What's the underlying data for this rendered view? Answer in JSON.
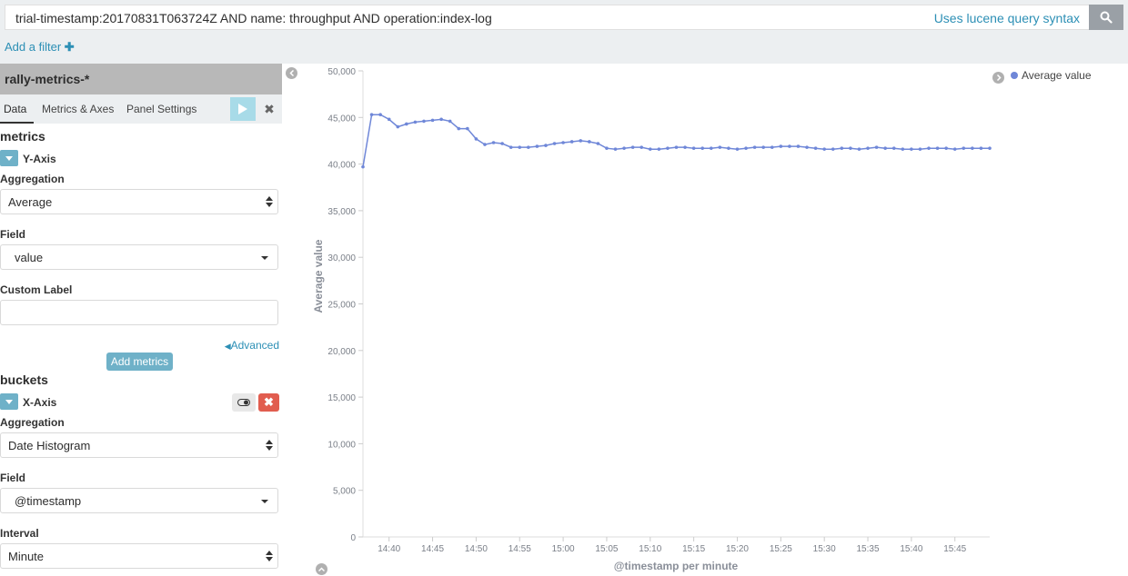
{
  "query": {
    "text": "trial-timestamp:20170831T063724Z AND name: throughput AND operation:index-log",
    "syntax_link": "Uses lucene query syntax",
    "search_icon": "search-icon"
  },
  "filter": {
    "add_label": "Add a filter"
  },
  "sidebar": {
    "index_pattern": "rally-metrics-*",
    "tabs": [
      {
        "label": "Data",
        "active": true
      },
      {
        "label": "Metrics & Axes",
        "active": false
      },
      {
        "label": "Panel Settings",
        "active": false
      }
    ],
    "metrics": {
      "title": "metrics",
      "agg_name": "Y-Axis",
      "aggregation_label": "Aggregation",
      "aggregation_value": "Average",
      "field_label": "Field",
      "field_value": "value",
      "custom_label_label": "Custom Label",
      "custom_label_value": "",
      "advanced": "Advanced",
      "add_button": "Add metrics"
    },
    "buckets": {
      "title": "buckets",
      "agg_name": "X-Axis",
      "aggregation_label": "Aggregation",
      "aggregation_value": "Date Histogram",
      "field_label": "Field",
      "field_value": "@timestamp",
      "interval_label": "Interval",
      "interval_value": "Minute"
    }
  },
  "colors": {
    "accent": "#6fb1c8",
    "link": "#2c8fb5",
    "series": "#6f87d8",
    "danger": "#e15d4f"
  },
  "chart_data": {
    "type": "line",
    "title": "",
    "xlabel": "@timestamp per minute",
    "ylabel": "Average value",
    "ylim": [
      0,
      50000
    ],
    "y_ticks": [
      0,
      5000,
      10000,
      15000,
      20000,
      25000,
      30000,
      35000,
      40000,
      45000,
      50000
    ],
    "y_tick_labels": [
      "0",
      "5,000",
      "10,000",
      "15,000",
      "20,000",
      "25,000",
      "30,000",
      "35,000",
      "40,000",
      "45,000",
      "50,000"
    ],
    "x_tick_labels": [
      "14:40",
      "14:45",
      "14:50",
      "14:55",
      "15:00",
      "15:05",
      "15:10",
      "15:15",
      "15:20",
      "15:25",
      "15:30",
      "15:35",
      "15:40",
      "15:45"
    ],
    "x_start": "14:37",
    "legend_position": "top-right",
    "grid": false,
    "series": [
      {
        "name": "Average value",
        "x": [
          "14:37",
          "14:38",
          "14:39",
          "14:40",
          "14:41",
          "14:42",
          "14:43",
          "14:44",
          "14:45",
          "14:46",
          "14:47",
          "14:48",
          "14:49",
          "14:50",
          "14:51",
          "14:52",
          "14:53",
          "14:54",
          "14:55",
          "14:56",
          "14:57",
          "14:58",
          "14:59",
          "15:00",
          "15:01",
          "15:02",
          "15:03",
          "15:04",
          "15:05",
          "15:06",
          "15:07",
          "15:08",
          "15:09",
          "15:10",
          "15:11",
          "15:12",
          "15:13",
          "15:14",
          "15:15",
          "15:16",
          "15:17",
          "15:18",
          "15:19",
          "15:20",
          "15:21",
          "15:22",
          "15:23",
          "15:24",
          "15:25",
          "15:26",
          "15:27",
          "15:28",
          "15:29",
          "15:30",
          "15:31",
          "15:32",
          "15:33",
          "15:34",
          "15:35",
          "15:36",
          "15:37",
          "15:38",
          "15:39",
          "15:40",
          "15:41",
          "15:42",
          "15:43",
          "15:44",
          "15:45",
          "15:46",
          "15:47",
          "15:48",
          "15:49"
        ],
        "values": [
          39700,
          45300,
          45300,
          44800,
          44000,
          44300,
          44500,
          44600,
          44700,
          44800,
          44600,
          43800,
          43800,
          42700,
          42100,
          42300,
          42200,
          41800,
          41800,
          41800,
          41900,
          42000,
          42200,
          42300,
          42400,
          42500,
          42400,
          42200,
          41700,
          41600,
          41700,
          41800,
          41800,
          41600,
          41600,
          41700,
          41800,
          41800,
          41700,
          41700,
          41700,
          41800,
          41700,
          41600,
          41700,
          41800,
          41800,
          41800,
          41900,
          41900,
          41900,
          41800,
          41700,
          41600,
          41600,
          41700,
          41700,
          41600,
          41700,
          41800,
          41700,
          41700,
          41600,
          41600,
          41600,
          41700,
          41700,
          41700,
          41600,
          41700,
          41700,
          41700,
          41700
        ]
      }
    ]
  }
}
